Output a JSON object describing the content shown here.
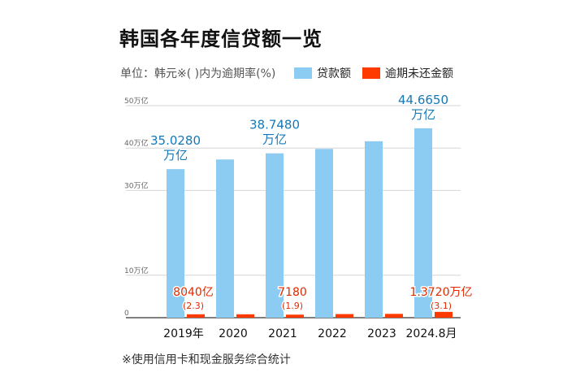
{
  "title": "韩国各年度信贷额一览",
  "unit_note": "单位：韩元※(  )内为逾期率(%)",
  "legend": {
    "loan": "贷款额",
    "overdue": "逾期未还金额",
    "loan_color": "#8ccbf2",
    "overdue_color": "#ff3a00"
  },
  "footnote": "※使用信用卡和现金服务综合统计",
  "chart_data": {
    "type": "bar",
    "categories": [
      "2019年",
      "2020",
      "2021",
      "2022",
      "2023",
      "2024.8月"
    ],
    "series": [
      {
        "name": "贷款额",
        "values": [
          35.028,
          37.3,
          38.748,
          39.8,
          41.6,
          44.665
        ]
      },
      {
        "name": "逾期未还金额",
        "values": [
          0.804,
          0.8,
          0.718,
          0.85,
          0.9,
          1.372
        ]
      }
    ],
    "ylim": [
      0,
      50
    ],
    "yticks": [
      {
        "v": 0,
        "label": "0"
      },
      {
        "v": 10,
        "label": "10万亿"
      },
      {
        "v": 30,
        "label": "30万亿"
      },
      {
        "v": 40,
        "label": "40万亿"
      },
      {
        "v": 50,
        "label": "50万亿"
      }
    ],
    "grid": true,
    "loan_labels": [
      {
        "index": 0,
        "lines": [
          "35.0280",
          "万亿"
        ]
      },
      {
        "index": 2,
        "lines": [
          "38.7480",
          "万亿"
        ]
      },
      {
        "index": 5,
        "lines": [
          "44.6650",
          "万亿"
        ]
      }
    ],
    "overdue_labels": [
      {
        "index": 0,
        "main": "8040亿",
        "sub": "(2.3)"
      },
      {
        "index": 2,
        "main": "7180",
        "sub": "(1.9)"
      },
      {
        "index": 5,
        "main": "1.3720万亿",
        "sub": "(3.1)"
      }
    ]
  }
}
